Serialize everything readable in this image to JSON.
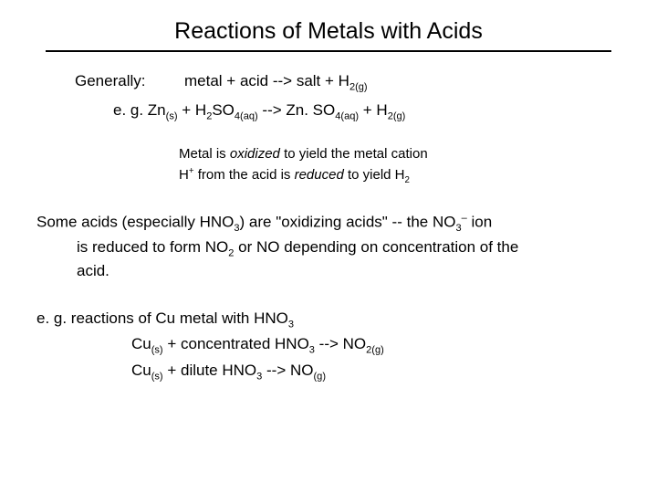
{
  "title": "Reactions of Metals with Acids",
  "general": {
    "label": "Generally:",
    "equation_prefix": "metal + acid  -->  salt  +  H",
    "eq_sub1": "2(g)",
    "line2_prefix": "e. g. Zn",
    "line2_sub1": "(s)",
    "line2_mid1": "  +  H",
    "line2_sub2": "2",
    "line2_mid2": "SO",
    "line2_sub3": "4(aq)",
    "line2_mid3": "  -->  Zn. SO",
    "line2_sub4": "4(aq)",
    "line2_mid4": "  +  H",
    "line2_sub5": "2(g)"
  },
  "notes": {
    "l1a": "Metal is ",
    "l1b": "oxidized",
    "l1c": " to yield the metal cation",
    "l2a": "H",
    "l2sup": "+",
    "l2b": " from the acid is ",
    "l2c": "reduced",
    "l2d": " to yield H",
    "l2sub": "2"
  },
  "para": {
    "p1": "Some acids (especially HNO",
    "p1sub": "3",
    "p2": ") are \"oxidizing acids\" --  the NO",
    "p2sub": "3",
    "p2sup": "–",
    "p3": " ion",
    "indent1": "is reduced to form NO",
    "indent1sub": "2",
    "indent2": " or NO depending on concentration of the",
    "indent3": "acid."
  },
  "ex": {
    "head1": "e. g. reactions of Cu metal with HNO",
    "head1sub": "3",
    "l1a": "Cu",
    "l1sub1": "(s)",
    "l1b": "  +  concentrated HNO",
    "l1sub2": "3",
    "l1c": "  -->  NO",
    "l1sub3": "2(g)",
    "l2a": "Cu",
    "l2sub1": "(s)",
    "l2b": "  +  dilute HNO",
    "l2sub2": "3",
    "l2c": "  -->  NO",
    "l2sub3": "(g)"
  }
}
